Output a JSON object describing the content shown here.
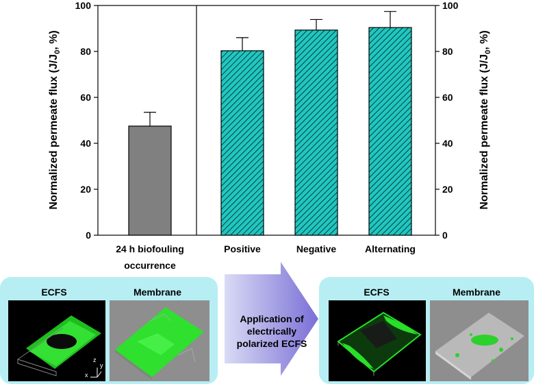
{
  "chart_data": {
    "type": "bar",
    "categories": [
      "24 h biofouling occurrence",
      "Positive",
      "Negative",
      "Alternating"
    ],
    "category_lines": [
      [
        "24 h biofouling",
        "occurrence"
      ],
      [
        "Positive"
      ],
      [
        "Negative"
      ],
      [
        "Alternating"
      ]
    ],
    "values": [
      47.5,
      80.3,
      89.3,
      90.4
    ],
    "errors": [
      6.0,
      5.7,
      4.6,
      7.0
    ],
    "ylim": [
      0,
      100
    ],
    "yticks": [
      "0",
      "20",
      "40",
      "60",
      "80",
      "100"
    ],
    "ylabel_left": "Normalized permeate flux (J/J",
    "ylabel_right": "Normalized permeate flux (J/J",
    "ylabel_sub": "0",
    "ylabel_suffix": ", %)",
    "bar_styles": [
      "solid-gray",
      "hatched-teal",
      "hatched-teal",
      "hatched-teal"
    ],
    "colors": {
      "gray": "#808080",
      "teal": "#1fc7c0",
      "hatch": "#0c3b3a"
    }
  },
  "bottom": {
    "left_panel": {
      "label1": "ECFS",
      "label2": "Membrane"
    },
    "right_panel": {
      "label1": "ECFS",
      "label2": "Membrane"
    },
    "arrow_text": [
      "Application of",
      "electrically",
      "polarized ECFS"
    ],
    "axis_letters": {
      "z": "z",
      "y": "y",
      "x": "x"
    },
    "colors": {
      "panel": "#b7eef4",
      "arrow": "#8e8be0",
      "green": "#22dd22"
    }
  }
}
